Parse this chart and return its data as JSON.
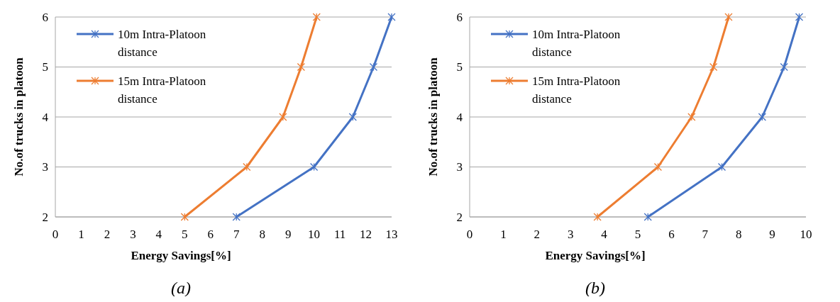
{
  "chart_data": [
    {
      "type": "line",
      "xlabel": "Energy Savings[%]",
      "ylabel": "No.of trucks in platoon",
      "annotations": [
        "(a)"
      ],
      "xlim": [
        0,
        13
      ],
      "xticks": [
        0,
        1,
        2,
        3,
        4,
        5,
        6,
        7,
        8,
        9,
        10,
        11,
        12,
        13
      ],
      "ylim": [
        2,
        6
      ],
      "yticks": [
        2,
        3,
        4,
        5,
        6
      ],
      "grid": "y",
      "legend": "top left",
      "marker": "cross",
      "line_style": "solid",
      "series": [
        {
          "name": "10m Intra-Platoon distance",
          "color": "#4472c4",
          "x": [
            7.0,
            10.0,
            11.5,
            12.3,
            13.0
          ],
          "values": [
            2,
            3,
            4,
            5,
            6
          ]
        },
        {
          "name": "15m Intra-Platoon distance",
          "color": "#ed7d31",
          "x": [
            5.0,
            7.4,
            8.8,
            9.5,
            10.1
          ],
          "values": [
            2,
            3,
            4,
            5,
            6
          ]
        }
      ]
    },
    {
      "type": "line",
      "xlabel": "Energy Savings[%]",
      "ylabel": "No.of trucks in platoon",
      "annotations": [
        "(b)"
      ],
      "xlim": [
        0,
        10
      ],
      "xticks": [
        0,
        1,
        2,
        3,
        4,
        5,
        6,
        7,
        8,
        9,
        10
      ],
      "ylim": [
        2,
        6
      ],
      "yticks": [
        2,
        3,
        4,
        5,
        6
      ],
      "grid": "y",
      "legend": "top left",
      "marker": "cross",
      "line_style": "solid",
      "series": [
        {
          "name": "10m Intra-Platoon distance",
          "color": "#4472c4",
          "x": [
            5.3,
            7.5,
            8.7,
            9.35,
            9.8
          ],
          "values": [
            2,
            3,
            4,
            5,
            6
          ]
        },
        {
          "name": "15m Intra-Platoon distance",
          "color": "#ed7d31",
          "x": [
            3.8,
            5.6,
            6.6,
            7.25,
            7.7
          ],
          "values": [
            2,
            3,
            4,
            5,
            6
          ]
        }
      ]
    }
  ]
}
